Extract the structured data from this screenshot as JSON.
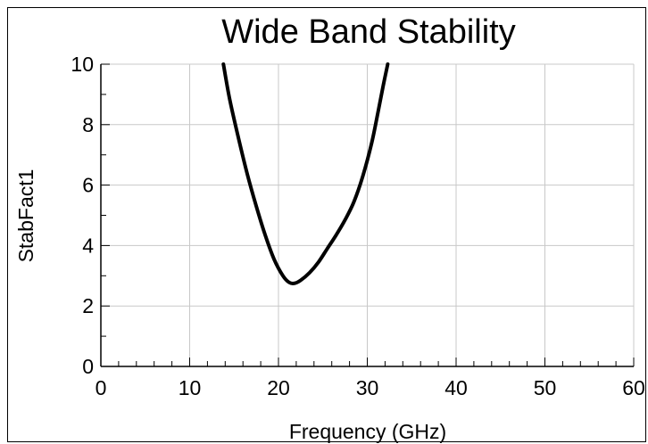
{
  "chart_data": {
    "type": "line",
    "title": "Wide Band Stability",
    "xlabel": "Frequency (GHz)",
    "ylabel": "StabFact1",
    "xlim": [
      0,
      60
    ],
    "ylim": [
      0,
      10
    ],
    "x_ticks": [
      "0",
      "10",
      "20",
      "30",
      "40",
      "50",
      "60"
    ],
    "y_ticks": [
      "0",
      "2",
      "4",
      "6",
      "8",
      "10"
    ],
    "grid": true,
    "line_color": "#000000",
    "series": [
      {
        "x": [
          13.8,
          14.5,
          15.5,
          16.5,
          17.5,
          18.5,
          19.5,
          20.5,
          21.2,
          21.8,
          22.5,
          23.5,
          24.5,
          25.5,
          26.5,
          27.5,
          28.5,
          29.5,
          30.5,
          31.2,
          31.8,
          32.3
        ],
        "y": [
          10.0,
          8.85,
          7.55,
          6.35,
          5.3,
          4.35,
          3.55,
          3.0,
          2.78,
          2.75,
          2.85,
          3.1,
          3.45,
          3.9,
          4.35,
          4.85,
          5.45,
          6.3,
          7.4,
          8.4,
          9.3,
          10.0
        ]
      }
    ]
  }
}
